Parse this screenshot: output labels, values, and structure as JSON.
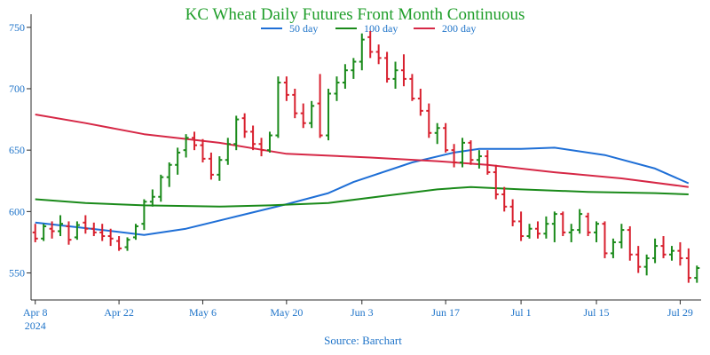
{
  "colors": {
    "title": "#1f9e2a",
    "axis_text": "#1f74c9",
    "axis_line": "#2b2b2b",
    "up_bar": "#1a8a1a",
    "down_bar": "#d8202e",
    "ma50": "#1f6fd6",
    "ma100": "#1a8a1a",
    "ma200": "#d62846"
  },
  "chart_data": {
    "type": "ohlc",
    "title": "KC Wheat Daily Futures Front Month Continuous",
    "source": "Source: Barchart",
    "ylim": [
      528,
      752
    ],
    "yticks": [
      550,
      600,
      650,
      700,
      750
    ],
    "xlim_index": [
      -0.5,
      79.5
    ],
    "xticks": [
      {
        "index": 0,
        "label": "Apr 8",
        "sublabel": "2024"
      },
      {
        "index": 10,
        "label": "Apr 22",
        "sublabel": ""
      },
      {
        "index": 20,
        "label": "May 6",
        "sublabel": ""
      },
      {
        "index": 30,
        "label": "May 20",
        "sublabel": ""
      },
      {
        "index": 39,
        "label": "Jun 3",
        "sublabel": ""
      },
      {
        "index": 49,
        "label": "Jun 17",
        "sublabel": ""
      },
      {
        "index": 58,
        "label": "Jul 1",
        "sublabel": ""
      },
      {
        "index": 67,
        "label": "Jul 15",
        "sublabel": ""
      },
      {
        "index": 77,
        "label": "Jul 29",
        "sublabel": ""
      }
    ],
    "legend": [
      {
        "name": "50 day",
        "color_key": "ma50"
      },
      {
        "name": "100 day",
        "color_key": "ma100"
      },
      {
        "name": "200 day",
        "color_key": "ma200"
      }
    ],
    "ohlc": [
      [
        583,
        590,
        575,
        578
      ],
      [
        578,
        590,
        576,
        588
      ],
      [
        586,
        592,
        578,
        584
      ],
      [
        584,
        597,
        580,
        590
      ],
      [
        588,
        592,
        573,
        577
      ],
      [
        579,
        592,
        577,
        589
      ],
      [
        591,
        597,
        582,
        586
      ],
      [
        586,
        591,
        580,
        583
      ],
      [
        583,
        590,
        576,
        580
      ],
      [
        580,
        586,
        572,
        578
      ],
      [
        576,
        580,
        568,
        570
      ],
      [
        571,
        579,
        568,
        577
      ],
      [
        579,
        590,
        577,
        588
      ],
      [
        590,
        610,
        585,
        608
      ],
      [
        608,
        618,
        604,
        612
      ],
      [
        612,
        630,
        608,
        628
      ],
      [
        628,
        640,
        620,
        638
      ],
      [
        638,
        652,
        630,
        648
      ],
      [
        650,
        663,
        644,
        660
      ],
      [
        660,
        665,
        650,
        654
      ],
      [
        654,
        659,
        640,
        643
      ],
      [
        643,
        648,
        626,
        630
      ],
      [
        630,
        645,
        625,
        642
      ],
      [
        642,
        660,
        638,
        655
      ],
      [
        655,
        678,
        650,
        675
      ],
      [
        676,
        680,
        660,
        665
      ],
      [
        665,
        670,
        650,
        655
      ],
      [
        655,
        660,
        645,
        650
      ],
      [
        650,
        665,
        648,
        662
      ],
      [
        662,
        710,
        660,
        705
      ],
      [
        705,
        710,
        690,
        695
      ],
      [
        695,
        700,
        676,
        680
      ],
      [
        680,
        688,
        668,
        672
      ],
      [
        672,
        690,
        668,
        686
      ],
      [
        688,
        712,
        660,
        662
      ],
      [
        662,
        700,
        658,
        696
      ],
      [
        696,
        710,
        690,
        705
      ],
      [
        705,
        720,
        700,
        715
      ],
      [
        715,
        725,
        708,
        722
      ],
      [
        722,
        745,
        715,
        740
      ],
      [
        742,
        747,
        725,
        730
      ],
      [
        730,
        736,
        720,
        725
      ],
      [
        725,
        730,
        705,
        708
      ],
      [
        708,
        722,
        700,
        715
      ],
      [
        715,
        728,
        702,
        708
      ],
      [
        708,
        712,
        690,
        692
      ],
      [
        692,
        700,
        678,
        682
      ],
      [
        682,
        688,
        660,
        664
      ],
      [
        664,
        672,
        655,
        668
      ],
      [
        668,
        672,
        648,
        650
      ],
      [
        650,
        655,
        636,
        640
      ],
      [
        640,
        660,
        636,
        656
      ],
      [
        656,
        658,
        638,
        642
      ],
      [
        642,
        650,
        635,
        645
      ],
      [
        645,
        650,
        630,
        632
      ],
      [
        632,
        638,
        610,
        614
      ],
      [
        614,
        620,
        600,
        604
      ],
      [
        604,
        610,
        588,
        592
      ],
      [
        592,
        600,
        576,
        580
      ],
      [
        580,
        590,
        578,
        586
      ],
      [
        586,
        592,
        578,
        582
      ],
      [
        582,
        596,
        578,
        590
      ],
      [
        590,
        600,
        575,
        598
      ],
      [
        598,
        600,
        580,
        583
      ],
      [
        583,
        590,
        575,
        585
      ],
      [
        585,
        602,
        582,
        598
      ],
      [
        596,
        599,
        580,
        583
      ],
      [
        583,
        592,
        575,
        590
      ],
      [
        590,
        592,
        562,
        566
      ],
      [
        566,
        578,
        562,
        575
      ],
      [
        575,
        590,
        570,
        585
      ],
      [
        585,
        588,
        560,
        565
      ],
      [
        565,
        572,
        550,
        555
      ],
      [
        555,
        565,
        548,
        562
      ],
      [
        562,
        578,
        558,
        572
      ],
      [
        572,
        580,
        562,
        565
      ],
      [
        565,
        572,
        560,
        568
      ],
      [
        568,
        575,
        556,
        562
      ],
      [
        562,
        570,
        542,
        546
      ],
      [
        546,
        556,
        542,
        554
      ]
    ],
    "series": [
      {
        "name": "50 day",
        "color_key": "ma50",
        "points": [
          [
            0,
            591
          ],
          [
            8,
            585
          ],
          [
            13,
            581
          ],
          [
            18,
            586
          ],
          [
            24,
            596
          ],
          [
            30,
            606
          ],
          [
            35,
            615
          ],
          [
            38,
            624
          ],
          [
            45,
            640
          ],
          [
            50,
            648
          ],
          [
            53,
            651
          ],
          [
            58,
            651
          ],
          [
            62,
            652
          ],
          [
            68,
            646
          ],
          [
            74,
            635
          ],
          [
            78,
            623
          ]
        ]
      },
      {
        "name": "100 day",
        "color_key": "ma100",
        "points": [
          [
            0,
            610
          ],
          [
            6,
            607
          ],
          [
            13,
            605
          ],
          [
            22,
            604
          ],
          [
            28,
            605
          ],
          [
            35,
            607
          ],
          [
            42,
            613
          ],
          [
            48,
            618
          ],
          [
            52,
            620
          ],
          [
            58,
            618
          ],
          [
            66,
            616
          ],
          [
            74,
            615
          ],
          [
            78,
            614
          ]
        ]
      },
      {
        "name": "200 day",
        "color_key": "ma200",
        "points": [
          [
            0,
            679
          ],
          [
            6,
            672
          ],
          [
            13,
            663
          ],
          [
            22,
            656
          ],
          [
            30,
            647
          ],
          [
            40,
            644
          ],
          [
            48,
            641
          ],
          [
            54,
            638
          ],
          [
            62,
            632
          ],
          [
            70,
            627
          ],
          [
            78,
            620
          ]
        ]
      }
    ]
  }
}
